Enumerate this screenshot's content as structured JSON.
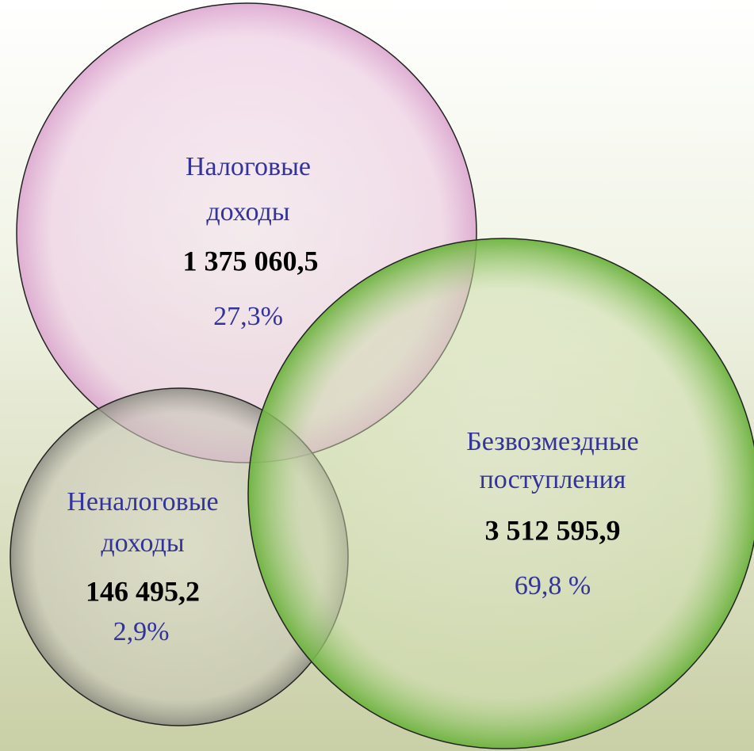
{
  "nodes": [
    {
      "label": [
        "Налоговые",
        "доходы"
      ],
      "value": "1 375 060,5",
      "percent": "27,3%"
    },
    {
      "label": [
        "Безвозмездные",
        "поступления"
      ],
      "value": "3 512 595,9",
      "percent": "69,8 %"
    },
    {
      "label": [
        "Неналоговые",
        "доходы"
      ],
      "value": "146 495,2",
      "percent": "2,9%"
    }
  ]
}
